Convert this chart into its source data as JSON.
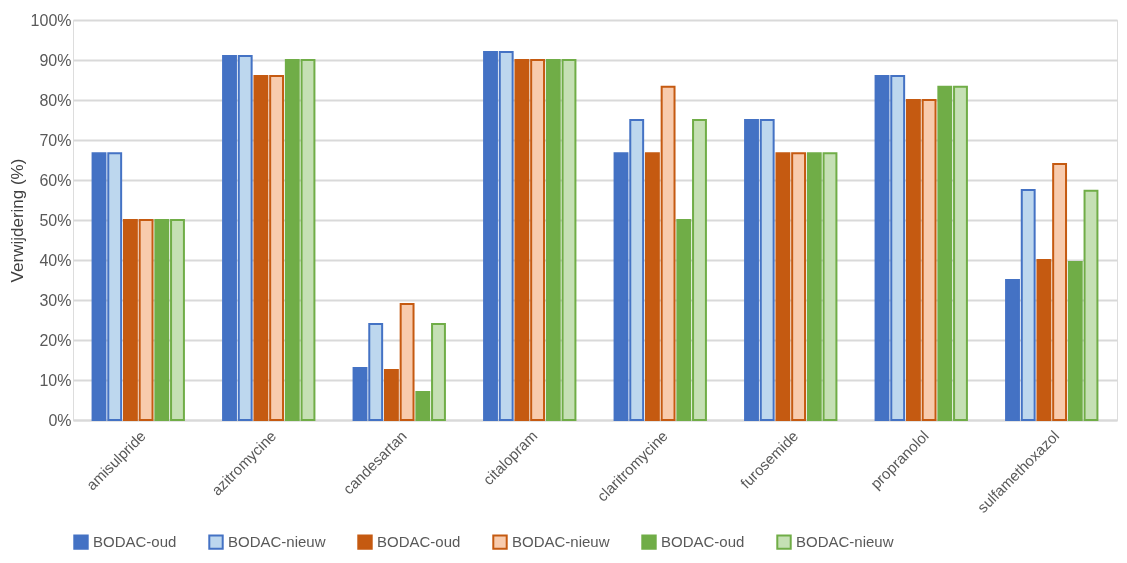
{
  "chart_data": {
    "type": "bar",
    "ylabel": "Verwijdering (%)",
    "categories": [
      "amisulpride",
      "azitromycine",
      "candesartan",
      "citalopram",
      "claritromycine",
      "furosemide",
      "propranolol",
      "sulfamethoxazol"
    ],
    "series": [
      {
        "name": "BODAC-oud",
        "color": "#4472c4",
        "values": [
          66.7,
          91,
          13,
          92,
          66.7,
          75,
          86,
          35
        ]
      },
      {
        "name": "BODAC-nieuw",
        "color": "#bdd7ee",
        "values": [
          66.7,
          91,
          24,
          92,
          75,
          75,
          86,
          57.5
        ]
      },
      {
        "name": "BODAC-oud",
        "color": "#c55a11",
        "values": [
          50,
          86,
          12.5,
          90,
          66.7,
          66.7,
          80,
          40
        ]
      },
      {
        "name": "BODAC-nieuw",
        "color": "#f8cbad",
        "values": [
          50,
          86,
          29,
          90,
          83.3,
          66.7,
          80,
          64
        ]
      },
      {
        "name": "BODAC-oud",
        "color": "#70ad47",
        "values": [
          50,
          90,
          7,
          90,
          50,
          66.7,
          83.3,
          39.5
        ]
      },
      {
        "name": "BODAC-nieuw",
        "color": "#c5e0b4",
        "values": [
          50,
          90,
          24,
          90,
          75,
          66.7,
          83.3,
          57.3
        ]
      }
    ],
    "ylim": [
      0,
      100
    ],
    "yticks": [
      {
        "value": 0,
        "label": "0%"
      },
      {
        "value": 10,
        "label": "10%"
      },
      {
        "value": 20,
        "label": "20%"
      },
      {
        "value": 30,
        "label": "30%"
      },
      {
        "value": 40,
        "label": "40%"
      },
      {
        "value": 50,
        "label": "50%"
      },
      {
        "value": 60,
        "label": "60%"
      },
      {
        "value": 70,
        "label": "70%"
      },
      {
        "value": 80,
        "label": "80%"
      },
      {
        "value": 90,
        "label": "90%"
      },
      {
        "value": 100,
        "label": "100%"
      }
    ],
    "grid": "y",
    "legend": "bottom"
  }
}
